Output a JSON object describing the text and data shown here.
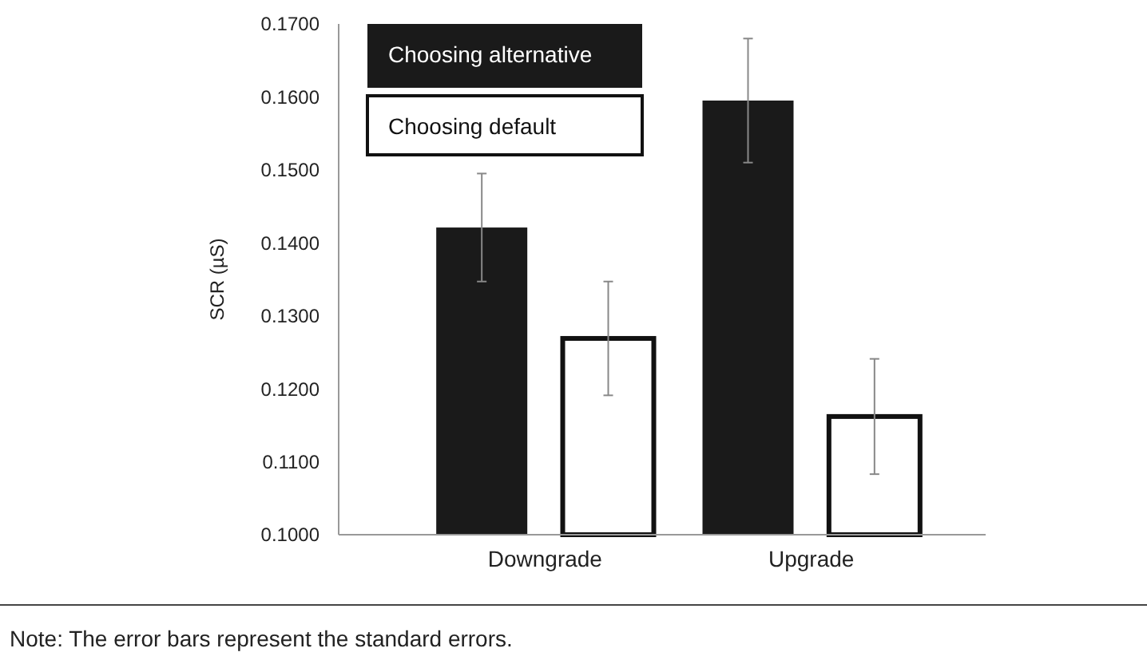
{
  "chart_data": {
    "type": "bar",
    "ylabel": "SCR (µS)",
    "categories": [
      "Downgrade",
      "Upgrade"
    ],
    "series": [
      {
        "name": "Choosing alternative",
        "color": "#1a1a1a",
        "values": [
          0.1421,
          0.1595
        ],
        "errors": [
          0.0074,
          0.0085
        ]
      },
      {
        "name": "Choosing default",
        "color": "#ffffff",
        "values": [
          0.1269,
          0.1162
        ],
        "errors": [
          0.0078,
          0.0079
        ]
      }
    ],
    "ylim": [
      0.1,
      0.17
    ],
    "yticks": [
      {
        "value": 0.1,
        "label": "0.1000"
      },
      {
        "value": 0.11,
        "label": "0.1100"
      },
      {
        "value": 0.12,
        "label": "0.1200"
      },
      {
        "value": 0.13,
        "label": "0.1300"
      },
      {
        "value": 0.14,
        "label": "0.1400"
      },
      {
        "value": 0.15,
        "label": "0.1500"
      },
      {
        "value": 0.16,
        "label": "0.1600"
      },
      {
        "value": 0.17,
        "label": "0.1700"
      }
    ],
    "grid": false,
    "legend": "top left",
    "annotations": [
      "Note: The error bars represent the standard errors."
    ]
  }
}
